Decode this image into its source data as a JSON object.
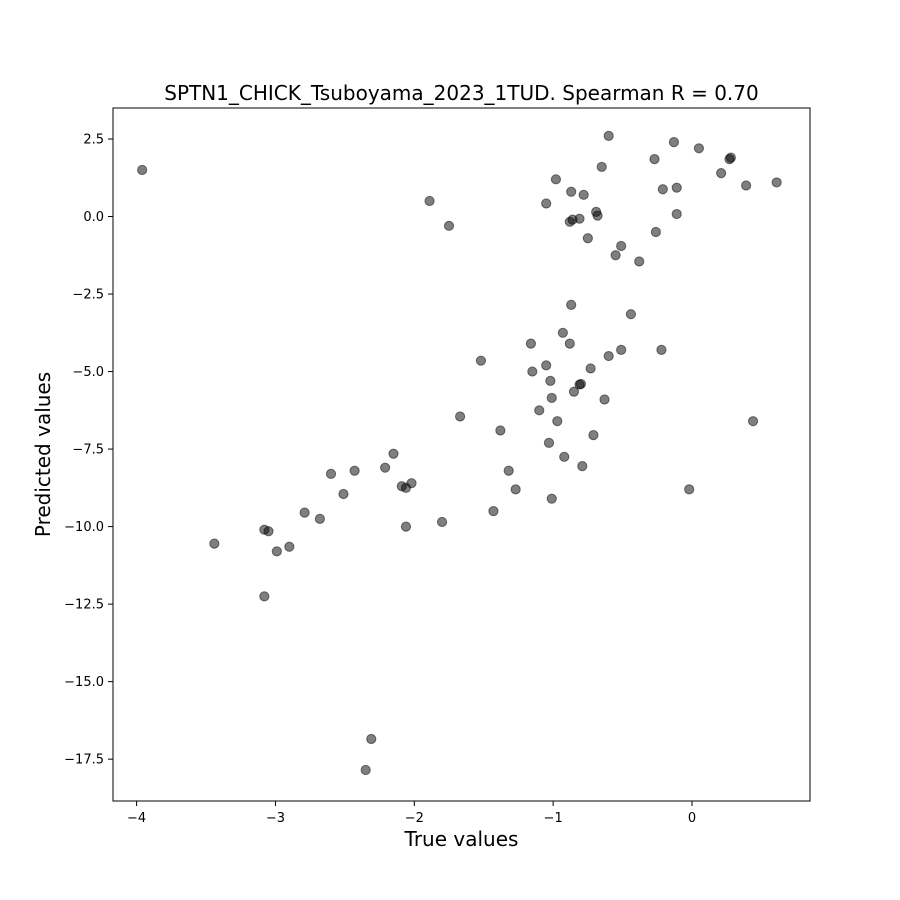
{
  "chart_data": {
    "type": "scatter",
    "title": "SPTN1_CHICK_Tsuboyama_2023_1TUD. Spearman R = 0.70",
    "xlabel": "True values",
    "ylabel": "Predicted values",
    "xlim": [
      -4.17,
      0.85
    ],
    "ylim": [
      -18.85,
      3.5
    ],
    "xticks": [
      -4,
      -3,
      -2,
      -1,
      0
    ],
    "xtick_labels": [
      "−4",
      "−3",
      "−2",
      "−1",
      "0"
    ],
    "yticks": [
      2.5,
      0.0,
      -2.5,
      -5.0,
      -7.5,
      -10.0,
      -12.5,
      -15.0,
      -17.5
    ],
    "ytick_labels": [
      "2.5",
      "0.0",
      "−2.5",
      "−5.0",
      "−7.5",
      "−10.0",
      "−12.5",
      "−15.0",
      "−17.5"
    ],
    "grid": false,
    "marker_color": "#000000",
    "marker_opacity": 0.5,
    "series": [
      {
        "points": [
          [
            -3.96,
            1.5
          ],
          [
            -1.89,
            0.5
          ],
          [
            -1.75,
            -0.3
          ],
          [
            -0.6,
            2.6
          ],
          [
            -0.13,
            2.4
          ],
          [
            0.05,
            2.2
          ],
          [
            -0.27,
            1.85
          ],
          [
            0.27,
            1.85
          ],
          [
            0.28,
            1.9
          ],
          [
            -0.65,
            1.6
          ],
          [
            0.21,
            1.4
          ],
          [
            -0.98,
            1.2
          ],
          [
            0.39,
            1.0
          ],
          [
            0.61,
            1.1
          ],
          [
            -0.21,
            0.88
          ],
          [
            -0.11,
            0.93
          ],
          [
            -0.87,
            0.8
          ],
          [
            -0.78,
            0.7
          ],
          [
            -1.05,
            0.42
          ],
          [
            -0.69,
            0.15
          ],
          [
            -0.11,
            0.08
          ],
          [
            -0.68,
            0.03
          ],
          [
            -0.81,
            -0.07
          ],
          [
            -0.86,
            -0.1
          ],
          [
            -0.88,
            -0.17
          ],
          [
            -0.26,
            -0.5
          ],
          [
            -0.75,
            -0.7
          ],
          [
            -0.51,
            -0.95
          ],
          [
            -0.55,
            -1.25
          ],
          [
            -0.38,
            -1.45
          ],
          [
            -0.87,
            -2.85
          ],
          [
            -0.44,
            -3.15
          ],
          [
            -0.93,
            -3.75
          ],
          [
            -0.88,
            -4.1
          ],
          [
            -1.16,
            -4.1
          ],
          [
            -0.22,
            -4.3
          ],
          [
            -0.51,
            -4.3
          ],
          [
            -0.6,
            -4.5
          ],
          [
            -1.52,
            -4.65
          ],
          [
            -1.05,
            -4.8
          ],
          [
            -0.73,
            -4.9
          ],
          [
            -1.15,
            -5.0
          ],
          [
            -1.02,
            -5.3
          ],
          [
            -0.8,
            -5.4
          ],
          [
            -0.81,
            -5.42
          ],
          [
            -0.85,
            -5.65
          ],
          [
            -1.01,
            -5.85
          ],
          [
            -0.63,
            -5.9
          ],
          [
            -1.1,
            -6.25
          ],
          [
            -1.67,
            -6.45
          ],
          [
            -0.97,
            -6.6
          ],
          [
            0.44,
            -6.6
          ],
          [
            -1.38,
            -6.9
          ],
          [
            -0.71,
            -7.05
          ],
          [
            -1.03,
            -7.3
          ],
          [
            -0.92,
            -7.75
          ],
          [
            -2.15,
            -7.65
          ],
          [
            -0.79,
            -8.05
          ],
          [
            -2.21,
            -8.1
          ],
          [
            -1.32,
            -8.2
          ],
          [
            -2.43,
            -8.2
          ],
          [
            -2.6,
            -8.3
          ],
          [
            -2.02,
            -8.6
          ],
          [
            -2.09,
            -8.7
          ],
          [
            -2.06,
            -8.75
          ],
          [
            -1.27,
            -8.8
          ],
          [
            -0.02,
            -8.8
          ],
          [
            -2.51,
            -8.95
          ],
          [
            -1.01,
            -9.1
          ],
          [
            -1.43,
            -9.5
          ],
          [
            -2.79,
            -9.55
          ],
          [
            -2.68,
            -9.75
          ],
          [
            -1.8,
            -9.85
          ],
          [
            -2.06,
            -10.0
          ],
          [
            -3.08,
            -10.1
          ],
          [
            -3.05,
            -10.15
          ],
          [
            -3.44,
            -10.55
          ],
          [
            -2.9,
            -10.65
          ],
          [
            -2.99,
            -10.8
          ],
          [
            -3.08,
            -12.25
          ],
          [
            -2.31,
            -16.85
          ],
          [
            -2.35,
            -17.85
          ]
        ]
      }
    ]
  }
}
